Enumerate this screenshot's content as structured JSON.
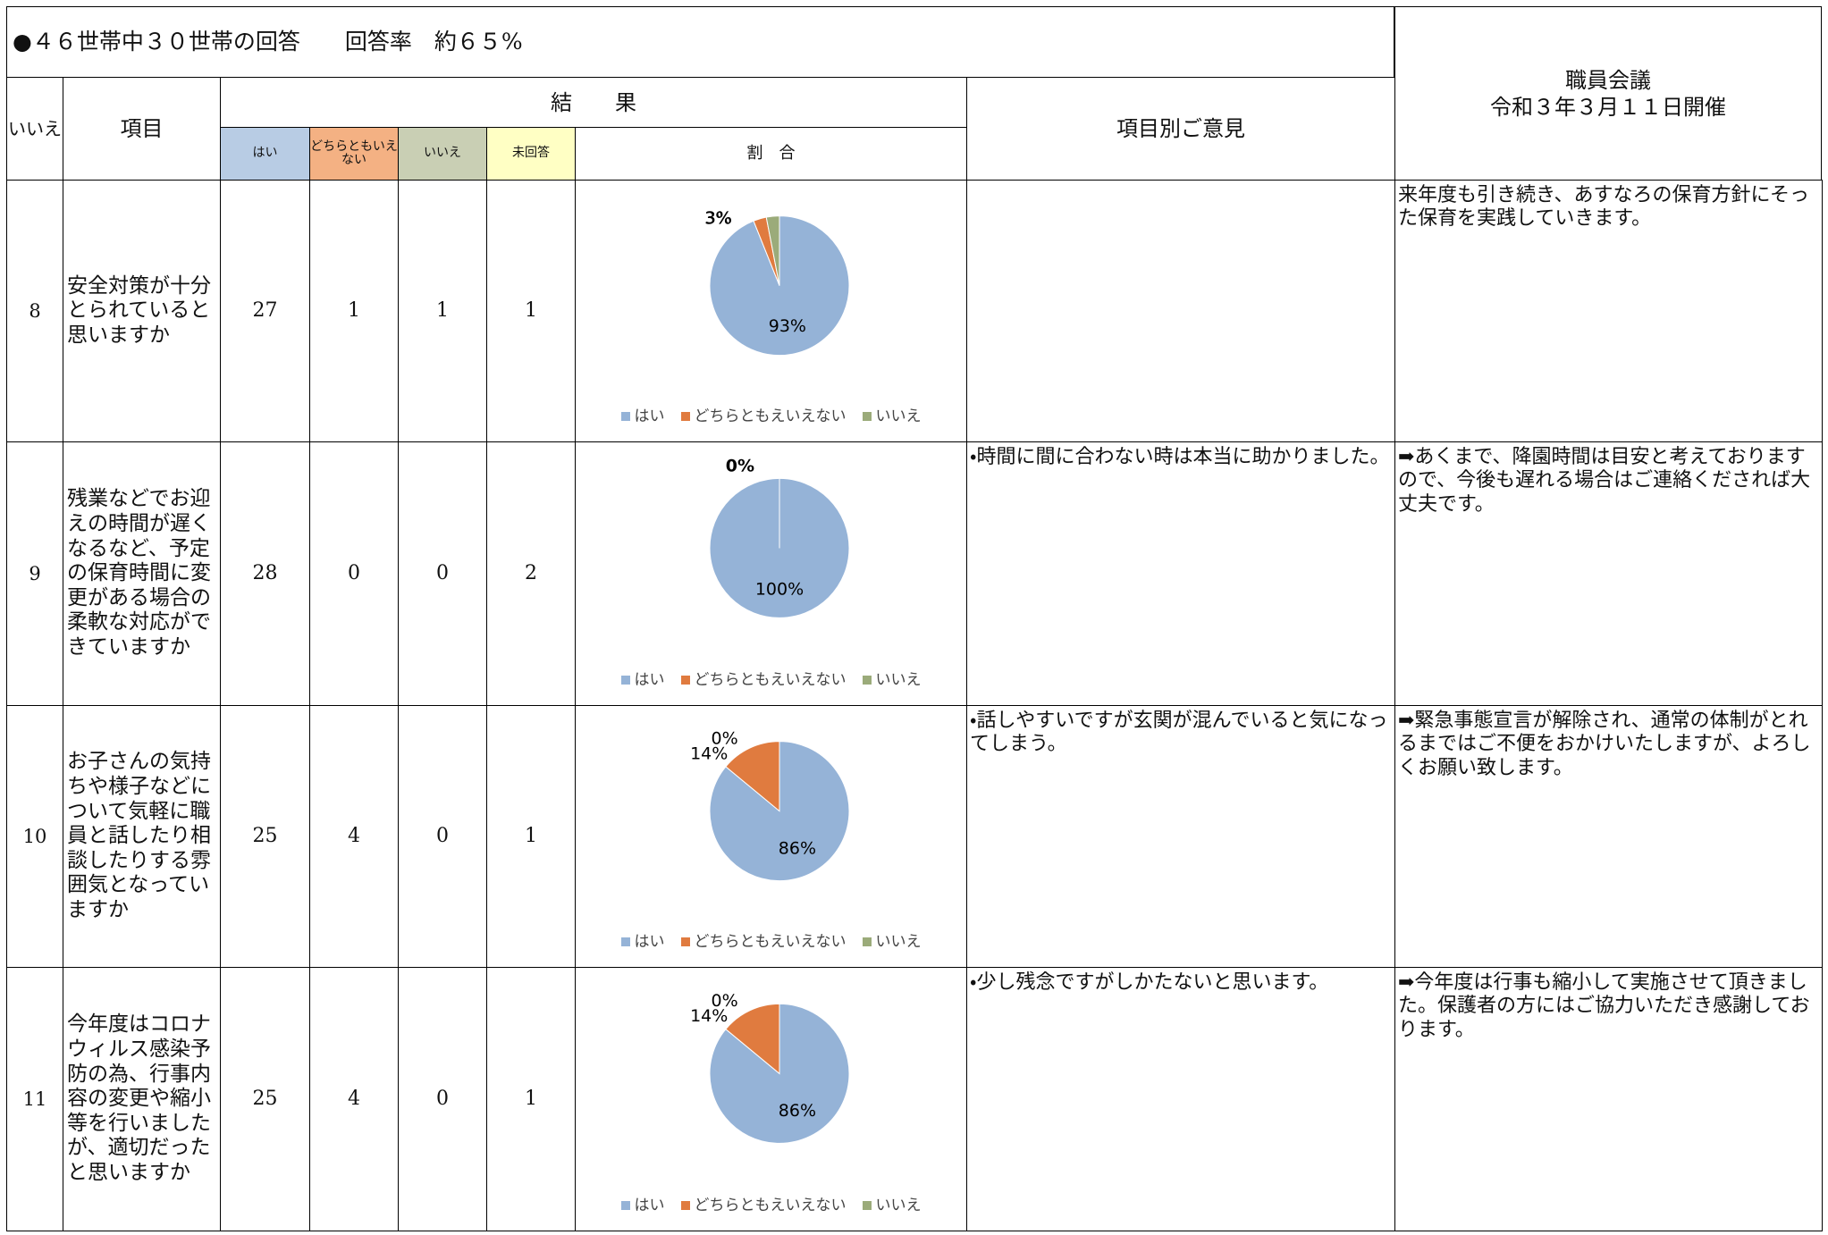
{
  "header": {
    "title": "●４６世帯中３０世帯の回答　　回答率　約６５%",
    "staff_meeting": "職員会議",
    "meeting_date": "令和３年３月１１日開催"
  },
  "columns": {
    "no": "いいえ",
    "item": "項目",
    "result": "結　　果",
    "opinion": "項目別ご意見",
    "yes": "はい",
    "neither": "どちらともいえない",
    "unanswered": "未回答",
    "ratio": "割　合"
  },
  "rows": [
    {
      "no": 8,
      "item": "安全対策が十分とられていると思いますか",
      "counts": [
        27,
        1,
        1,
        1
      ],
      "chart": {
        "type": "pie",
        "categories": [
          "はい",
          "どちらともえいえない",
          "いいえ"
        ],
        "colors": [
          "#95b3d7",
          "#e07b3f",
          "#9bab7a"
        ],
        "values": [
          93,
          3,
          3
        ],
        "value_labels": [
          "93%",
          "3%",
          "3%"
        ]
      },
      "response": "来年度も引き続き、あすなろの保育方針にそった保育を実践していきます。"
    },
    {
      "no": 9,
      "item": "残業などでお迎えの時間が遅くなるなど、予定の保育時間に変更がある場合の柔軟な対応ができていますか",
      "counts": [
        28,
        0,
        0,
        2
      ],
      "chart": {
        "type": "pie",
        "categories": [
          "はい",
          "どちらともえいえない",
          "いいえ"
        ],
        "colors": [
          "#95b3d7",
          "#e07b3f",
          "#9bab7a"
        ],
        "values": [
          100,
          0,
          0
        ],
        "value_labels": [
          "100%",
          "0%",
          null
        ]
      },
      "opinion": "・時間に間に合わない時は本当に助かりました。",
      "response": "➡あくまで、降園時間は目安と考えておりますので、今後も遅れる場合はご連絡くだされば大丈夫です。"
    },
    {
      "no": 10,
      "item": "お子さんの気持ちや様子などについて気軽に職員と話したり相談したりする雰囲気となっていますか",
      "counts": [
        25,
        4,
        0,
        1
      ],
      "chart": {
        "type": "pie",
        "categories": [
          "はい",
          "どちらともえいえない",
          "いいえ"
        ],
        "colors": [
          "#95b3d7",
          "#e07b3f",
          "#9bab7a"
        ],
        "values": [
          86,
          14,
          0
        ],
        "value_labels": [
          "86%",
          "14%",
          "0%"
        ]
      },
      "opinion": "・話しやすいですが玄関が混んでいると気になってしまう。",
      "response": "➡緊急事態宣言が解除され、通常の体制がとれるまではご不便をおかけいたしますが、よろしくお願い致します。"
    },
    {
      "no": 11,
      "item": "今年度はコロナウィルス感染予防の為、行事内容の変更や縮小等を行いましたが、適切だったと思いますか",
      "counts": [
        25,
        4,
        0,
        1
      ],
      "chart": {
        "type": "pie",
        "categories": [
          "はい",
          "どちらともえいえない",
          "いいえ"
        ],
        "colors": [
          "#95b3d7",
          "#e07b3f",
          "#9bab7a"
        ],
        "values": [
          86,
          14,
          0
        ],
        "value_labels": [
          "86%",
          "14%",
          "0%"
        ]
      },
      "opinion": "・少し残念ですがしかたないと思います。",
      "response": "➡今年度は行事も縮小して実施させて頂きました。保護者の方にはご協力いただき感謝しております。"
    }
  ]
}
